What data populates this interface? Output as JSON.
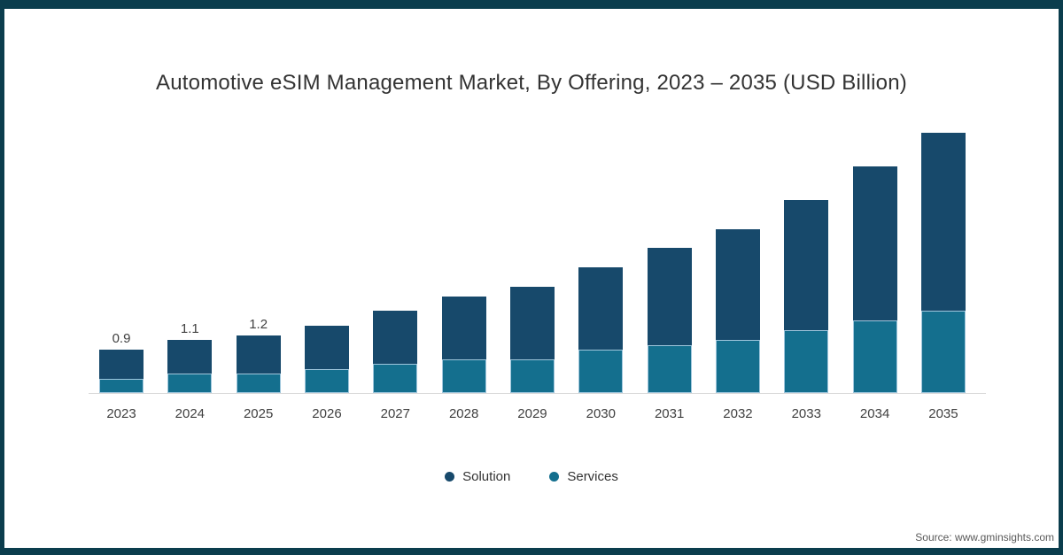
{
  "title": "Automotive eSIM Management Market, By Offering, 2023 – 2035 (USD Billion)",
  "source": "Source: www.gminsights.com",
  "colors": {
    "frame_border": "#0B3D4D",
    "solution": "#17496B",
    "services": "#146F8E",
    "segment_border": "#9FC6DC",
    "axis_line": "#D9D9D9",
    "title_text": "#333333",
    "label_text": "#404040",
    "source_text": "#595959"
  },
  "legend": {
    "items": [
      {
        "label": "Solution",
        "color": "#17496B"
      },
      {
        "label": "Services",
        "color": "#146F8E"
      }
    ]
  },
  "chart_data": {
    "type": "bar",
    "stacked": true,
    "title": "Automotive eSIM Management Market, By Offering, 2023 – 2035 (USD Billion)",
    "xlabel": "",
    "ylabel": "",
    "ylim": [
      0,
      5.5
    ],
    "grid": false,
    "legend_position": "bottom",
    "categories": [
      "2023",
      "2024",
      "2025",
      "2026",
      "2027",
      "2028",
      "2029",
      "2030",
      "2031",
      "2032",
      "2033",
      "2034",
      "2035"
    ],
    "series": [
      {
        "name": "Solution",
        "color": "#17496B",
        "values": [
          0.6,
          0.7,
          0.8,
          0.9,
          1.1,
          1.3,
          1.5,
          1.7,
          2.0,
          2.3,
          2.7,
          3.2,
          3.7
        ]
      },
      {
        "name": "Services",
        "color": "#146F8E",
        "values": [
          0.3,
          0.4,
          0.4,
          0.5,
          0.6,
          0.7,
          0.7,
          0.9,
          1.0,
          1.1,
          1.3,
          1.5,
          1.7
        ]
      }
    ],
    "totals": [
      0.9,
      1.1,
      1.2,
      1.4,
      1.7,
      2.0,
      2.2,
      2.6,
      3.0,
      3.4,
      4.0,
      4.7,
      5.4
    ],
    "data_labels": [
      "0.9",
      "1.1",
      "1.2",
      "",
      "",
      "",
      "",
      "",
      "",
      "",
      "",
      "",
      ""
    ]
  }
}
